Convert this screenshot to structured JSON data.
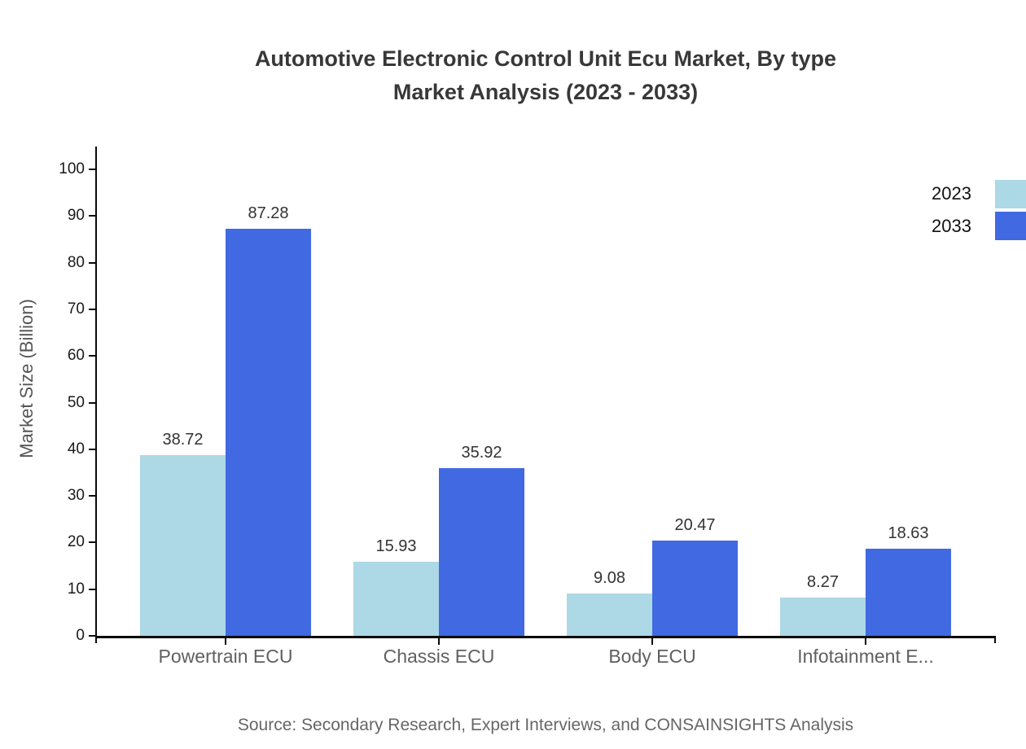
{
  "title": {
    "line1": "Automotive Electronic Control Unit Ecu Market, By type",
    "line2": "Market Analysis (2023 - 2033)"
  },
  "y_axis_title": "Market Size (Billion)",
  "legend": [
    {
      "label": "2023",
      "color": "#ADD8E6"
    },
    {
      "label": "2033",
      "color": "#4169E1"
    }
  ],
  "source": "Source: Secondary Research, Expert Interviews, and CONSAINSIGHTS Analysis",
  "chart_data": {
    "type": "bar",
    "categories": [
      "Powertrain ECU",
      "Chassis ECU",
      "Body ECU",
      "Infotainment E..."
    ],
    "series": [
      {
        "name": "2023",
        "color": "#ADD8E6",
        "values": [
          38.72,
          15.93,
          9.08,
          8.27
        ]
      },
      {
        "name": "2033",
        "color": "#4169E1",
        "values": [
          87.28,
          35.92,
          20.47,
          18.63
        ]
      }
    ],
    "title": "Automotive Electronic Control Unit Ecu Market, By type Market Analysis (2023 - 2033)",
    "xlabel": "",
    "ylabel": "Market Size (Billion)",
    "ylim": [
      0,
      100
    ],
    "yticks": [
      0,
      10,
      20,
      30,
      40,
      50,
      60,
      70,
      80,
      90,
      100
    ],
    "grid": false,
    "legend_position": "top-right",
    "value_labels": true
  }
}
